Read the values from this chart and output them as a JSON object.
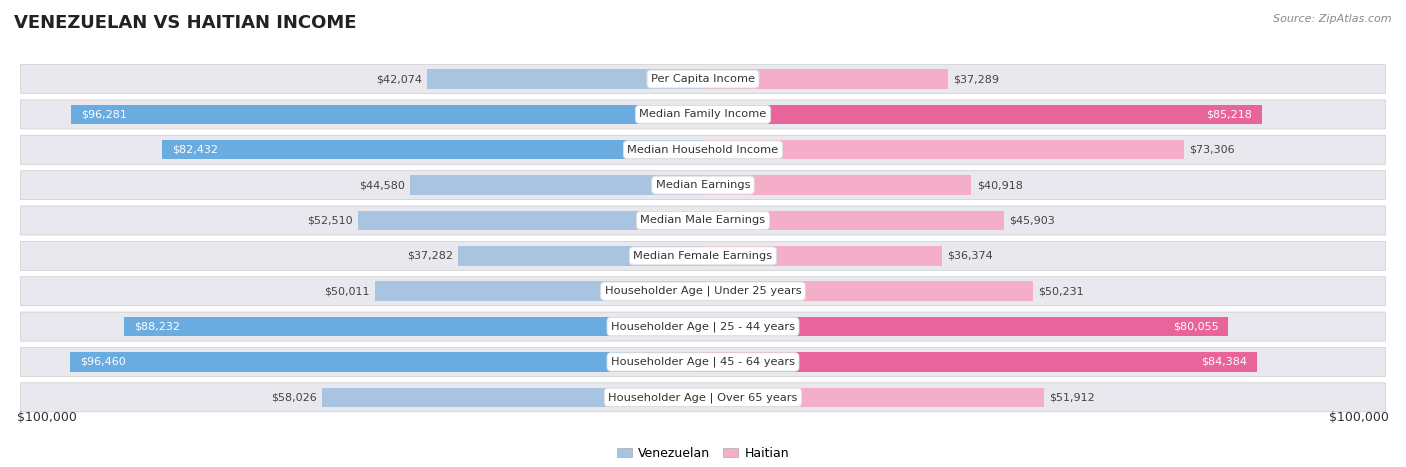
{
  "title": "VENEZUELAN VS HAITIAN INCOME",
  "source": "Source: ZipAtlas.com",
  "categories": [
    "Per Capita Income",
    "Median Family Income",
    "Median Household Income",
    "Median Earnings",
    "Median Male Earnings",
    "Median Female Earnings",
    "Householder Age | Under 25 years",
    "Householder Age | 25 - 44 years",
    "Householder Age | 45 - 64 years",
    "Householder Age | Over 65 years"
  ],
  "venezuelan_values": [
    42074,
    96281,
    82432,
    44580,
    52510,
    37282,
    50011,
    88232,
    96460,
    58026
  ],
  "haitian_values": [
    37289,
    85218,
    73306,
    40918,
    45903,
    36374,
    50231,
    80055,
    84384,
    51912
  ],
  "max_value": 100000,
  "venezuelan_color_light": "#a8c4e0",
  "venezuelan_color_dark": "#6aabe0",
  "haitian_color_light": "#f4aec8",
  "haitian_color_dark": "#e8649a",
  "venezuelan_label": "Venezuelan",
  "haitian_label": "Haitian",
  "bar_height": 0.55,
  "row_bg_color": "#e8e8ee",
  "xlabel_left": "$100,000",
  "xlabel_right": "$100,000",
  "threshold": 75000
}
